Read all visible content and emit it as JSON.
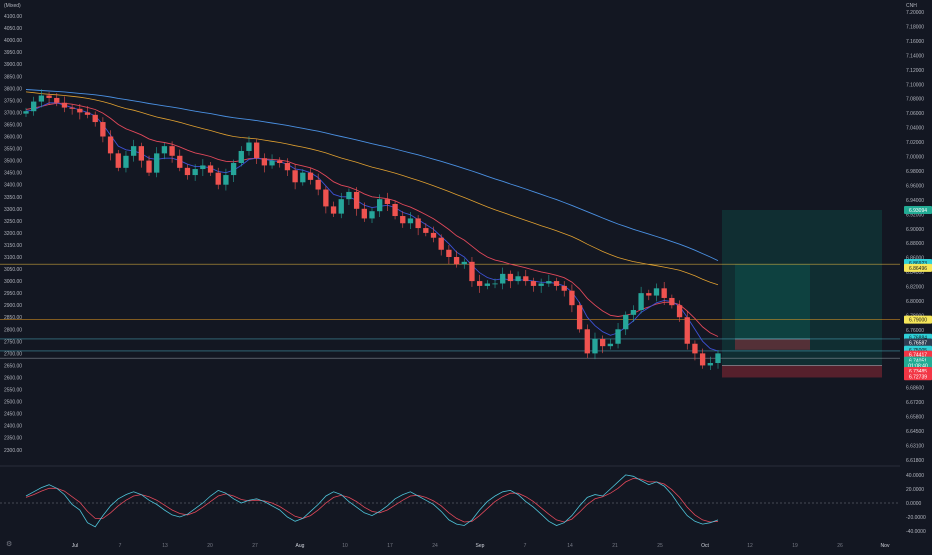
{
  "chart_data": {
    "type": "candlestick",
    "left_axis": {
      "label": "(Mixed)",
      "ticks": [
        4100,
        4050,
        4000,
        3950,
        3900,
        3850,
        3800,
        3750,
        3700,
        3650,
        3600,
        3550,
        3500,
        3450,
        3400,
        3350,
        3300,
        3250,
        3200,
        3150,
        3100,
        3050,
        3000,
        2950,
        2900,
        2850,
        2800,
        2750,
        2700,
        2650,
        2600,
        2550,
        2500,
        2450,
        2400,
        2350,
        2300
      ],
      "range": [
        2270,
        4125
      ]
    },
    "right_axis": {
      "label": "CNH",
      "ticks": [
        7.2,
        7.18,
        7.16,
        7.14,
        7.12,
        7.1,
        7.08,
        7.06,
        7.04,
        7.02,
        7.0,
        6.98,
        6.96,
        6.94,
        6.92,
        6.9,
        6.88,
        6.86,
        6.84,
        6.82,
        6.8,
        6.78,
        6.76,
        6.74,
        6.72,
        6.7,
        6.686,
        6.672,
        6.658,
        6.645,
        6.631,
        6.618
      ],
      "tick_labels": [
        "7.20000",
        "7.18000",
        "7.16000",
        "7.14000",
        "7.12000",
        "7.10000",
        "7.08000",
        "7.06000",
        "7.04000",
        "7.02000",
        "7.00000",
        "6.98000",
        "6.96000",
        "6.94000",
        "6.92000",
        "6.90000",
        "6.88000",
        "6.86000",
        "6.84000",
        "6.82000",
        "6.80000",
        "6.78000",
        "6.76000",
        "6.74000",
        "6.72000",
        "6.70000",
        "6.68600",
        "6.67200",
        "6.65800",
        "6.64500",
        "6.63100",
        "6.61800"
      ]
    },
    "x_axis": {
      "ticks": [
        "Jul",
        "7",
        "13",
        "20",
        "27",
        "Aug",
        "10",
        "17",
        "24",
        "Sep",
        "7",
        "14",
        "21",
        "25",
        "Oct",
        "12",
        "19",
        "26",
        "Nov"
      ],
      "months": [
        "Jul",
        "Aug",
        "Sep",
        "Oct",
        "Nov"
      ]
    },
    "price": [
      3705,
      3745,
      3770,
      3760,
      3740,
      3720,
      3715,
      3700,
      3690,
      3660,
      3600,
      3530,
      3470,
      3520,
      3560,
      3500,
      3450,
      3530,
      3560,
      3520,
      3470,
      3440,
      3465,
      3480,
      3450,
      3400,
      3440,
      3490,
      3540,
      3575,
      3510,
      3480,
      3500,
      3490,
      3460,
      3410,
      3450,
      3420,
      3380,
      3310,
      3280,
      3340,
      3370,
      3300,
      3260,
      3290,
      3340,
      3320,
      3270,
      3240,
      3260,
      3220,
      3200,
      3180,
      3130,
      3100,
      3070,
      3080,
      3000,
      2980,
      2990,
      2990,
      3030,
      3000,
      3020,
      3000,
      2980,
      2990,
      3000,
      2980,
      2960,
      2900,
      2800,
      2700,
      2760,
      2730,
      2740,
      2800,
      2860,
      2880,
      2950,
      2940,
      2970,
      2930,
      2900,
      2850,
      2740,
      2700,
      2650,
      2660,
      2700
    ],
    "ma_fast": [
      3705,
      3710,
      3725,
      3740,
      3740,
      3730,
      3720,
      3710,
      3700,
      3685,
      3650,
      3605,
      3560,
      3545,
      3540,
      3530,
      3510,
      3505,
      3510,
      3510,
      3500,
      3485,
      3475,
      3475,
      3470,
      3455,
      3450,
      3460,
      3480,
      3505,
      3510,
      3505,
      3500,
      3495,
      3485,
      3465,
      3460,
      3450,
      3430,
      3395,
      3360,
      3350,
      3350,
      3335,
      3315,
      3305,
      3310,
      3315,
      3305,
      3285,
      3275,
      3255,
      3235,
      3215,
      3185,
      3155,
      3120,
      3100,
      3065,
      3035,
      3015,
      3005,
      3010,
      3005,
      3005,
      3005,
      3000,
      2995,
      2995,
      2990,
      2980,
      2955,
      2910,
      2850,
      2815,
      2790,
      2775,
      2785,
      2810,
      2835,
      2870,
      2890,
      2910,
      2920,
      2915,
      2895,
      2850,
      2800,
      2750,
      2720,
      2710
    ],
    "ma_mid": [
      3712,
      3718,
      3725,
      3733,
      3738,
      3738,
      3734,
      3728,
      3721,
      3712,
      3697,
      3675,
      3650,
      3632,
      3620,
      3607,
      3590,
      3580,
      3575,
      3568,
      3557,
      3543,
      3532,
      3525,
      3517,
      3505,
      3497,
      3495,
      3500,
      3508,
      3510,
      3507,
      3505,
      3502,
      3497,
      3485,
      3478,
      3470,
      3457,
      3436,
      3412,
      3398,
      3390,
      3378,
      3362,
      3350,
      3346,
      3342,
      3333,
      3318,
      3307,
      3292,
      3276,
      3259,
      3237,
      3214,
      3188,
      3170,
      3145,
      3120,
      3100,
      3087,
      3080,
      3070,
      3063,
      3055,
      3046,
      3038,
      3032,
      3024,
      3014,
      2996,
      2967,
      2928,
      2900,
      2876,
      2858,
      2853,
      2858,
      2866,
      2882,
      2893,
      2905,
      2912,
      2912,
      2902,
      2876,
      2845,
      2810,
      2785,
      2770
    ],
    "ma_slow": [
      3785,
      3782,
      3778,
      3775,
      3773,
      3770,
      3767,
      3763,
      3758,
      3752,
      3745,
      3736,
      3725,
      3716,
      3709,
      3700,
      3690,
      3681,
      3674,
      3667,
      3659,
      3650,
      3641,
      3633,
      3625,
      3616,
      3607,
      3600,
      3596,
      3593,
      3590,
      3585,
      3580,
      3575,
      3569,
      3562,
      3556,
      3549,
      3541,
      3532,
      3521,
      3511,
      3502,
      3493,
      3483,
      3473,
      3465,
      3457,
      3448,
      3438,
      3428,
      3418,
      3407,
      3396,
      3384,
      3372,
      3359,
      3347,
      3334,
      3321,
      3308,
      3296,
      3285,
      3274,
      3263,
      3252,
      3241,
      3230,
      3220,
      3209,
      3197,
      3185,
      3170,
      3153,
      3138,
      3123,
      3110,
      3098,
      3089,
      3081,
      3075,
      3069,
      3064,
      3058,
      3052,
      3045,
      3034,
      3022,
      3008,
      2995,
      2985
    ],
    "ma_long": [
      3795,
      3793,
      3791,
      3789,
      3787,
      3785,
      3782,
      3779,
      3776,
      3773,
      3769,
      3764,
      3758,
      3753,
      3748,
      3743,
      3737,
      3732,
      3727,
      3722,
      3717,
      3711,
      3705,
      3700,
      3695,
      3689,
      3683,
      3678,
      3674,
      3670,
      3666,
      3661,
      3656,
      3651,
      3646,
      3640,
      3634,
      3628,
      3622,
      3615,
      3607,
      3600,
      3593,
      3586,
      3578,
      3570,
      3563,
      3556,
      3548,
      3540,
      3532,
      3524,
      3515,
      3506,
      3497,
      3487,
      3477,
      3467,
      3457,
      3446,
      3435,
      3424,
      3414,
      3403,
      3393,
      3382,
      3371,
      3360,
      3349,
      3338,
      3326,
      3314,
      3301,
      3288,
      3275,
      3262,
      3249,
      3237,
      3226,
      3215,
      3205,
      3195,
      3185,
      3175,
      3164,
      3153,
      3141,
      3128,
      3114,
      3100,
      3085
    ],
    "position_long": {
      "target_box_top": 3295,
      "target_box_bottom": 2650,
      "entry": 2650,
      "stop": 2600
    },
    "position_second": {
      "target_box_top": 3070,
      "target_box_bottom": 2760,
      "entry": 2760,
      "stop": 2715
    },
    "horizontal_lines": [
      {
        "price": 3070,
        "color": "#f0c040"
      },
      {
        "price": 2840,
        "color": "#f0a020"
      },
      {
        "price": 2760,
        "color": "#4fb0c6"
      },
      {
        "price": 2710,
        "color": "#4fb0c6"
      },
      {
        "price": 2680,
        "color": "#9aa0aa"
      }
    ],
    "price_labels": [
      {
        "text": "6.93094",
        "price": 3295,
        "bg": "#22ab94",
        "fg": "#ffffff"
      },
      {
        "text": "6.86923",
        "price": 3075,
        "bg": "#2fd0d8",
        "fg": "#0b1a1f"
      },
      {
        "text": "6.86496",
        "price": 3055,
        "bg": "#f5e65a",
        "fg": "#1a1a1a"
      },
      {
        "text": "6.79000",
        "price": 2840,
        "bg": "#f5e65a",
        "fg": "#1a1a1a"
      },
      {
        "text": "6.76884",
        "price": 2765,
        "bg": "#2fd0d8",
        "fg": "#0b1a1f"
      },
      {
        "text": "6.76587",
        "price": 2745,
        "bg": "#2f3d52",
        "fg": "#ffffff"
      },
      {
        "text": "6.75005",
        "price": 2715,
        "bg": "#2fd0d8",
        "fg": "#0b1a1f"
      },
      {
        "text": "6.74417",
        "price": 2695,
        "bg": "#f23645",
        "fg": "#ffffff"
      },
      {
        "text": "6.74051",
        "price": 2670,
        "bg": "#22ab94",
        "fg": "#ffffff"
      },
      {
        "text": "01:08:40",
        "price": 2650,
        "bg": "#22ab94",
        "fg": "#ffffff"
      },
      {
        "text": "6.73485",
        "price": 2627,
        "bg": "#f23645",
        "fg": "#ffffff"
      },
      {
        "text": "6.72739",
        "price": 2605,
        "bg": "#f23645",
        "fg": "#ffffff"
      }
    ],
    "oscillator": {
      "ticks": [
        40,
        20,
        0,
        -20,
        -40
      ],
      "tick_labels": [
        "40.0000",
        "20.0000",
        "0.0000",
        "-20.0000",
        "-40.0000"
      ],
      "range": [
        -47,
        47
      ],
      "line_a": [
        10,
        16,
        22,
        26,
        21,
        12,
        -2,
        -10,
        -28,
        -34,
        -18,
        -4,
        6,
        12,
        16,
        12,
        4,
        -2,
        -10,
        -17,
        -20,
        -16,
        -8,
        0,
        10,
        18,
        14,
        6,
        0,
        4,
        6,
        2,
        -4,
        -10,
        -20,
        -26,
        -22,
        -12,
        -2,
        10,
        16,
        12,
        2,
        -6,
        -14,
        -18,
        -12,
        -4,
        6,
        12,
        16,
        10,
        4,
        -2,
        -12,
        -24,
        -30,
        -32,
        -24,
        -10,
        2,
        10,
        16,
        18,
        12,
        2,
        -6,
        -16,
        -26,
        -32,
        -28,
        -18,
        -4,
        8,
        12,
        10,
        20,
        30,
        40,
        38,
        32,
        26,
        30,
        24,
        12,
        -4,
        -18,
        -26,
        -30,
        -28,
        -24
      ],
      "line_b": [
        8,
        12,
        17,
        21,
        21,
        17,
        9,
        1,
        -12,
        -22,
        -22,
        -14,
        -4,
        4,
        10,
        12,
        9,
        4,
        -3,
        -10,
        -15,
        -17,
        -13,
        -6,
        2,
        10,
        13,
        10,
        5,
        3,
        4,
        3,
        0,
        -5,
        -12,
        -19,
        -22,
        -18,
        -10,
        0,
        8,
        11,
        8,
        2,
        -6,
        -12,
        -14,
        -10,
        -3,
        4,
        10,
        11,
        8,
        3,
        -4,
        -14,
        -22,
        -27,
        -26,
        -18,
        -8,
        2,
        9,
        14,
        14,
        9,
        2,
        -7,
        -16,
        -24,
        -27,
        -23,
        -13,
        -2,
        6,
        9,
        14,
        21,
        30,
        35,
        34,
        30,
        30,
        27,
        19,
        8,
        -6,
        -17,
        -24,
        -27,
        -26
      ]
    }
  }
}
